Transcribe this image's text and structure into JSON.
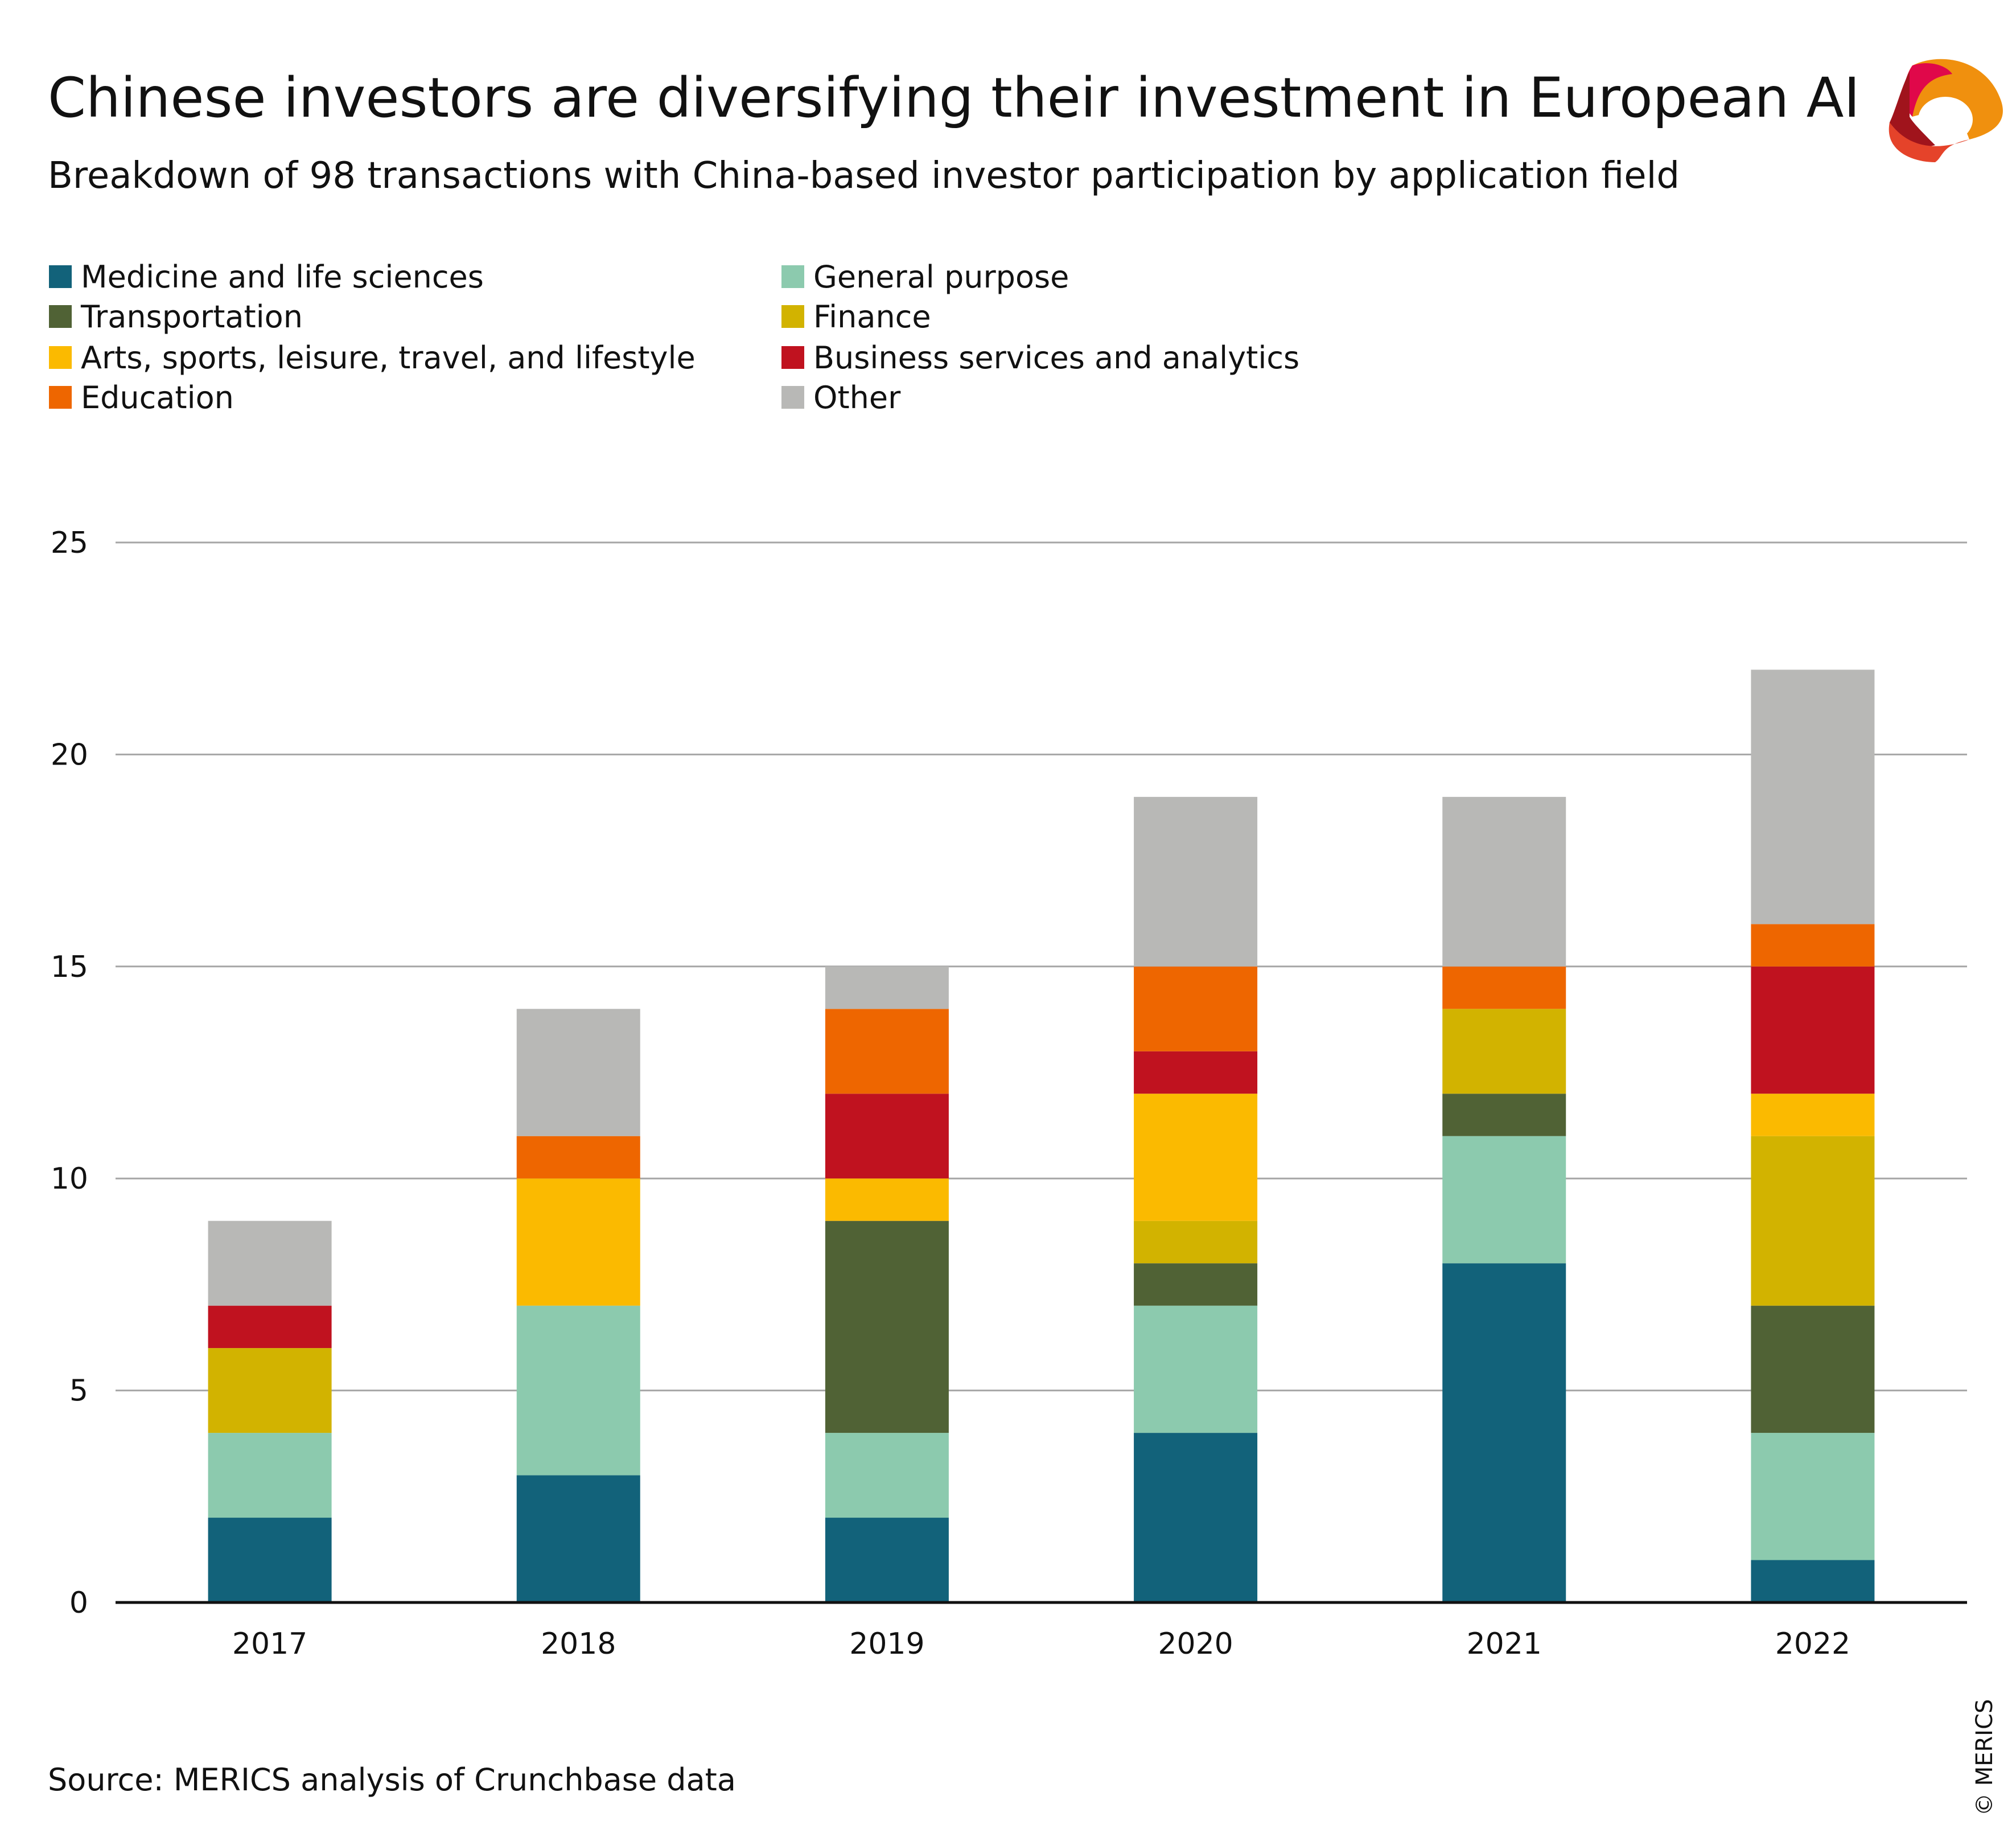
{
  "header": {
    "title": "Chinese investors are diversifying their investment in European AI",
    "subtitle": "Breakdown of 98 transactions with China-based investor participation by application field",
    "logo_icon": "merics-logo-icon"
  },
  "footer": {
    "source": "Source: MERICS analysis of Crunchbase data",
    "copyright": "© MERICS"
  },
  "chart_data": {
    "type": "bar",
    "stacked": true,
    "title": "Chinese investors are diversifying their investment in European AI",
    "subtitle": "Breakdown of 98 transactions with China-based investor participation by application field",
    "categories": [
      "2017",
      "2018",
      "2019",
      "2020",
      "2021",
      "2022"
    ],
    "xlabel": "",
    "ylabel": "",
    "ylim": [
      0,
      25
    ],
    "yticks": [
      0,
      5,
      10,
      15,
      20,
      25
    ],
    "grid": true,
    "legend_placement": "top-left",
    "series": [
      {
        "name": "Medicine and life sciences",
        "color": "#12627a",
        "values": [
          2,
          3,
          2,
          4,
          8,
          1
        ]
      },
      {
        "name": "General purpose",
        "color": "#8ccaae",
        "values": [
          2,
          4,
          2,
          3,
          3,
          3
        ]
      },
      {
        "name": "Transportation",
        "color": "#506235",
        "values": [
          0,
          0,
          5,
          1,
          1,
          3
        ]
      },
      {
        "name": "Finance",
        "color": "#d2b300",
        "values": [
          2,
          0,
          0,
          1,
          2,
          4
        ]
      },
      {
        "name": "Arts, sports, leisure, travel, and lifestyle",
        "color": "#fbba00",
        "values": [
          0,
          3,
          1,
          3,
          0,
          1
        ]
      },
      {
        "name": "Business services and analytics",
        "color": "#c0121f",
        "values": [
          1,
          0,
          2,
          1,
          0,
          3
        ]
      },
      {
        "name": "Education",
        "color": "#ee6600",
        "values": [
          0,
          1,
          2,
          2,
          1,
          1
        ]
      },
      {
        "name": "Other",
        "color": "#b8b8b6",
        "values": [
          2,
          3,
          1,
          4,
          4,
          6
        ]
      }
    ]
  }
}
